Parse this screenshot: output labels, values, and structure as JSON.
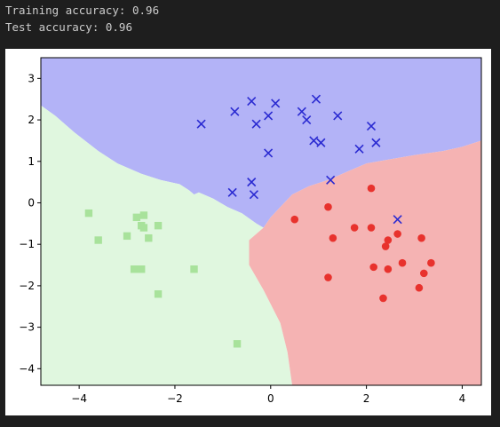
{
  "console": {
    "lines": [
      "Training accuracy: 0.96",
      "Test accuracy: 0.96"
    ]
  },
  "colors": {
    "region_blue": "#b3b3f7",
    "region_red": "#f5b3b3",
    "region_green": "#e0f7df",
    "blue_marker": "#2a2ad1",
    "red_marker": "#e8322d",
    "green_marker": "#a8e29b"
  },
  "chart_data": {
    "type": "scatter",
    "xlim": [
      -4.8,
      4.4
    ],
    "ylim": [
      -4.4,
      3.5
    ],
    "xticks": [
      -4,
      -2,
      0,
      2,
      4
    ],
    "yticks": [
      -4,
      -3,
      -2,
      -1,
      0,
      1,
      2,
      3
    ],
    "grid": false,
    "decision_regions": {
      "boundary_blue_green": [
        [
          -4.8,
          2.35
        ],
        [
          -4.5,
          2.1
        ],
        [
          -4.1,
          1.7
        ],
        [
          -3.6,
          1.25
        ],
        [
          -3.2,
          0.95
        ],
        [
          -2.7,
          0.7
        ],
        [
          -2.3,
          0.55
        ],
        [
          -1.9,
          0.45
        ],
        [
          -1.7,
          0.3
        ],
        [
          -1.6,
          0.2
        ],
        [
          -1.5,
          0.25
        ],
        [
          -1.2,
          0.1
        ],
        [
          -0.9,
          -0.1
        ],
        [
          -0.6,
          -0.25
        ],
        [
          -0.3,
          -0.5
        ],
        [
          -0.15,
          -0.6
        ]
      ],
      "boundary_blue_red": [
        [
          -0.15,
          -0.6
        ],
        [
          0.0,
          -0.35
        ],
        [
          0.2,
          -0.1
        ],
        [
          0.45,
          0.2
        ],
        [
          0.8,
          0.4
        ],
        [
          1.2,
          0.55
        ],
        [
          1.6,
          0.75
        ],
        [
          2.0,
          0.95
        ],
        [
          2.5,
          1.05
        ],
        [
          3.0,
          1.15
        ],
        [
          3.6,
          1.25
        ],
        [
          4.0,
          1.35
        ],
        [
          4.4,
          1.5
        ]
      ],
      "boundary_green_red": [
        [
          -0.15,
          -0.6
        ],
        [
          -0.45,
          -0.9
        ],
        [
          -0.45,
          -1.5
        ],
        [
          -0.15,
          -2.1
        ],
        [
          0.2,
          -2.9
        ],
        [
          0.35,
          -3.6
        ],
        [
          0.45,
          -4.4
        ]
      ]
    },
    "series": [
      {
        "marker": "x",
        "x": [
          -1.45,
          -0.75,
          -0.4,
          -0.3,
          0.1,
          -0.05,
          0.65,
          0.75,
          0.95,
          1.4,
          2.1,
          0.9,
          1.05,
          1.85,
          2.2,
          -0.05,
          -0.4,
          -0.35,
          -0.8,
          1.25,
          2.65
        ],
        "y": [
          1.9,
          2.2,
          2.45,
          1.9,
          2.4,
          2.1,
          2.2,
          2.0,
          2.5,
          2.1,
          1.85,
          1.5,
          1.45,
          1.3,
          1.45,
          1.2,
          0.5,
          0.2,
          0.25,
          0.55,
          -0.4
        ]
      },
      {
        "marker": "o",
        "x": [
          0.5,
          1.2,
          1.3,
          1.75,
          2.1,
          2.1,
          2.45,
          2.65,
          3.15,
          2.4,
          2.45,
          2.15,
          2.75,
          3.35,
          3.2,
          3.1,
          1.2,
          2.35
        ],
        "y": [
          -0.4,
          -0.1,
          -0.85,
          -0.6,
          0.35,
          -0.6,
          -0.9,
          -0.75,
          -0.85,
          -1.05,
          -1.6,
          -1.55,
          -1.45,
          -1.45,
          -1.7,
          -2.05,
          -1.8,
          -2.3
        ]
      },
      {
        "marker": "s",
        "x": [
          -3.8,
          -3.6,
          -2.8,
          -2.65,
          -3.0,
          -2.7,
          -2.65,
          -2.55,
          -2.35,
          -2.85,
          -2.7,
          -1.6,
          -2.35,
          -0.7
        ],
        "y": [
          -0.25,
          -0.9,
          -0.35,
          -0.3,
          -0.8,
          -0.55,
          -0.6,
          -0.85,
          -0.55,
          -1.6,
          -1.6,
          -1.6,
          -2.2,
          -3.4
        ]
      }
    ]
  }
}
